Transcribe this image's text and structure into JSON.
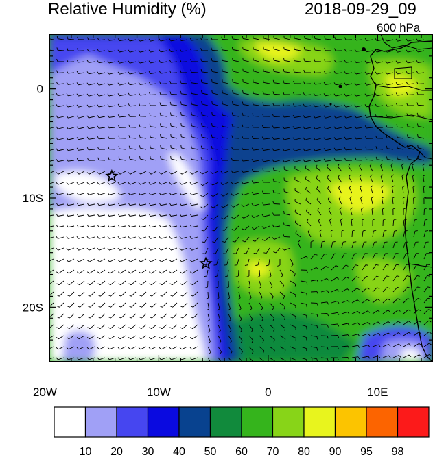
{
  "header": {
    "title": "Relative Humidity (%)",
    "date": "2018-09-29_09",
    "level": "600 hPa"
  },
  "map": {
    "lon_range": [
      -20,
      15
    ],
    "lat_range": [
      -25,
      5
    ],
    "x_ticks": [
      {
        "lon": -20,
        "label": "20W"
      },
      {
        "lon": -10,
        "label": "10W"
      },
      {
        "lon": 0,
        "label": "0"
      },
      {
        "lon": 10,
        "label": "10E"
      }
    ],
    "y_ticks": [
      {
        "lat": 0,
        "label": "0"
      },
      {
        "lat": -10,
        "label": "10S"
      },
      {
        "lat": -20,
        "label": "20S"
      }
    ],
    "stations": [
      {
        "name": "star-marker-1",
        "lon": -14.3,
        "lat": -8.0
      },
      {
        "name": "star-marker-2",
        "lon": -5.7,
        "lat": -16.0
      }
    ]
  },
  "colorbar": {
    "labels": [
      "10",
      "20",
      "30",
      "40",
      "50",
      "60",
      "70",
      "80",
      "90",
      "95",
      "98"
    ],
    "colors": [
      "#ffffff",
      "#a0a0f6",
      "#4646f0",
      "#0a0ae0",
      "#08428f",
      "#118a3c",
      "#35b41c",
      "#88d418",
      "#e8f41e",
      "#fcc400",
      "#fc6400",
      "#fc1a1a"
    ]
  }
}
